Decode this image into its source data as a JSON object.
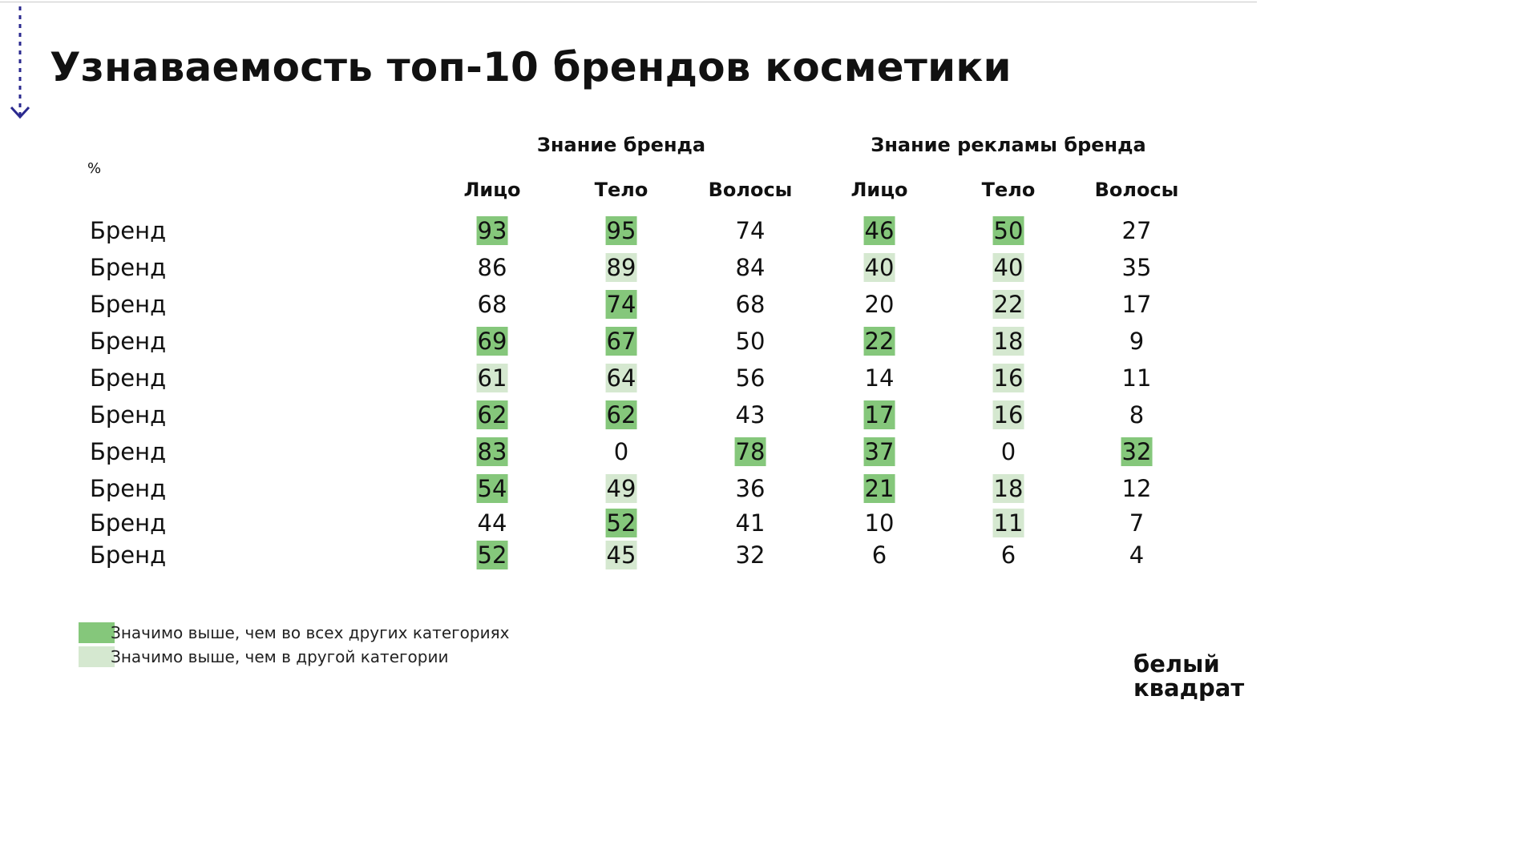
{
  "title": "Узнаваемость топ-10 брендов косметики",
  "unit_label": "%",
  "groups": [
    "Знание бренда",
    "Знание рекламы бренда"
  ],
  "columns": [
    "Лицо",
    "Тело",
    "Волосы",
    "Лицо",
    "Тело",
    "Волосы"
  ],
  "legend": [
    {
      "label": "Значимо выше, чем во всех других категориях",
      "color": "#85c77b"
    },
    {
      "label": "Значимо выше, чем в другой категории",
      "color": "#d5e8d0"
    }
  ],
  "logo": [
    "белый",
    "квадрат"
  ],
  "colors": {
    "sig_all": "#85c77b",
    "sig_one": "#d5e8d0"
  },
  "chart_data": {
    "type": "table",
    "title": "Узнаваемость топ-10 брендов косметики",
    "unit": "%",
    "column_groups": [
      {
        "name": "Знание бренда",
        "columns": [
          "Лицо",
          "Тело",
          "Волосы"
        ]
      },
      {
        "name": "Знание рекламы бренда",
        "columns": [
          "Лицо",
          "Тело",
          "Волосы"
        ]
      }
    ],
    "rows": [
      {
        "label": "Бренд",
        "values": [
          93,
          95,
          74,
          46,
          50,
          27
        ],
        "highlight": [
          "all",
          "all",
          "",
          "all",
          "all",
          ""
        ]
      },
      {
        "label": "Бренд",
        "values": [
          86,
          89,
          84,
          40,
          40,
          35
        ],
        "highlight": [
          "",
          "one",
          "",
          "one",
          "one",
          ""
        ]
      },
      {
        "label": "Бренд",
        "values": [
          68,
          74,
          68,
          20,
          22,
          17
        ],
        "highlight": [
          "",
          "all",
          "",
          "",
          "one",
          ""
        ]
      },
      {
        "label": "Бренд",
        "values": [
          69,
          67,
          50,
          22,
          18,
          9
        ],
        "highlight": [
          "all",
          "all",
          "",
          "all",
          "one",
          ""
        ]
      },
      {
        "label": "Бренд",
        "values": [
          61,
          64,
          56,
          14,
          16,
          11
        ],
        "highlight": [
          "one",
          "one",
          "",
          "",
          "one",
          ""
        ]
      },
      {
        "label": "Бренд",
        "values": [
          62,
          62,
          43,
          17,
          16,
          8
        ],
        "highlight": [
          "all",
          "all",
          "",
          "all",
          "one",
          ""
        ]
      },
      {
        "label": "Бренд",
        "values": [
          83,
          0,
          78,
          37,
          0,
          32
        ],
        "highlight": [
          "all",
          "",
          "all",
          "all",
          "",
          "all"
        ]
      },
      {
        "label": "Бренд",
        "values": [
          54,
          49,
          36,
          21,
          18,
          12
        ],
        "highlight": [
          "all",
          "one",
          "",
          "all",
          "one",
          ""
        ]
      },
      {
        "label": "Бренд",
        "values": [
          44,
          52,
          41,
          10,
          11,
          7
        ],
        "highlight": [
          "",
          "all",
          "",
          "",
          "one",
          ""
        ]
      },
      {
        "label": "Бренд",
        "values": [
          52,
          45,
          32,
          6,
          6,
          4
        ],
        "highlight": [
          "all",
          "one",
          "",
          "",
          "",
          ""
        ]
      }
    ]
  }
}
